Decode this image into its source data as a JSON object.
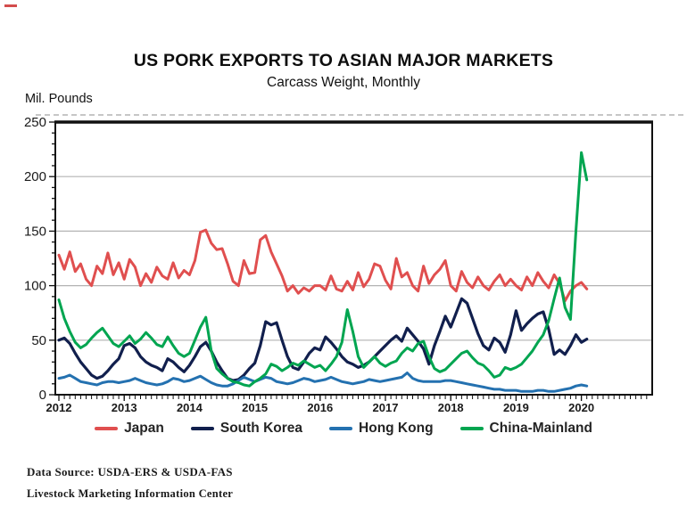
{
  "decorations": {
    "top_left_dash_color": "#d34c4c"
  },
  "footer": {
    "data_source": "Data Source:  USDA-ERS & USDA-FAS",
    "organization": "Livestock Marketing Information Center"
  },
  "chart_data": {
    "type": "line",
    "title": "US PORK EXPORTS TO ASIAN MAJOR MARKETS",
    "subtitle": "Carcass Weight, Monthly",
    "ylabel": "Mil. Pounds",
    "ylim": [
      0,
      250
    ],
    "y_ticks": [
      0,
      50,
      100,
      150,
      200,
      250
    ],
    "x_tick_labels": [
      "2012",
      "2013",
      "2014",
      "2015",
      "2016",
      "2017",
      "2018",
      "2019",
      "2020"
    ],
    "frequency": "monthly",
    "x_start": "2012-01",
    "x_end": "2020-02",
    "points_per_series": 98,
    "grid": "horizontal",
    "legend_position": "bottom",
    "axis_color": "#111111",
    "grid_color": "#b3b3b3",
    "series": [
      {
        "name": "Japan",
        "color": "#e04f4f",
        "values": [
          128,
          115,
          131,
          113,
          120,
          106,
          100,
          118,
          111,
          130,
          110,
          121,
          106,
          124,
          117,
          100,
          111,
          103,
          117,
          109,
          106,
          121,
          107,
          114,
          110,
          123,
          149,
          151,
          139,
          133,
          134,
          120,
          104,
          100,
          123,
          111,
          112,
          142,
          146,
          131,
          120,
          109,
          95,
          100,
          93,
          98,
          95,
          100,
          100,
          96,
          109,
          97,
          95,
          104,
          96,
          112,
          99,
          106,
          120,
          118,
          105,
          97,
          125,
          108,
          112,
          100,
          95,
          118,
          102,
          110,
          115,
          123,
          100,
          95,
          113,
          103,
          98,
          108,
          100,
          96,
          104,
          110,
          100,
          106,
          100,
          96,
          108,
          100,
          112,
          104,
          98,
          110,
          102,
          86,
          95,
          100,
          103,
          97
        ]
      },
      {
        "name": "South Korea",
        "color": "#111f4d",
        "values": [
          50,
          52,
          47,
          38,
          30,
          24,
          18,
          15,
          17,
          22,
          28,
          33,
          45,
          47,
          43,
          35,
          30,
          27,
          25,
          22,
          33,
          30,
          25,
          21,
          27,
          35,
          44,
          48,
          40,
          30,
          22,
          15,
          13,
          14,
          18,
          24,
          29,
          45,
          67,
          64,
          66,
          50,
          35,
          25,
          23,
          30,
          38,
          43,
          41,
          53,
          48,
          42,
          35,
          30,
          28,
          25,
          27,
          30,
          35,
          40,
          45,
          50,
          54,
          49,
          61,
          55,
          49,
          42,
          28,
          45,
          58,
          72,
          62,
          75,
          88,
          84,
          70,
          56,
          45,
          41,
          52,
          48,
          39,
          55,
          77,
          59,
          65,
          70,
          74,
          76,
          60,
          37,
          41,
          37,
          45,
          55,
          48,
          51
        ]
      },
      {
        "name": "Hong Kong",
        "color": "#2471b0",
        "values": [
          15,
          16,
          18,
          15,
          12,
          11,
          10,
          9,
          11,
          12,
          12,
          11,
          12,
          13,
          15,
          13,
          11,
          10,
          9,
          10,
          12,
          15,
          14,
          12,
          13,
          15,
          17,
          14,
          11,
          9,
          8,
          8,
          10,
          13,
          16,
          14,
          12,
          14,
          16,
          15,
          12,
          11,
          10,
          11,
          13,
          15,
          14,
          12,
          13,
          14,
          16,
          14,
          12,
          11,
          10,
          11,
          12,
          14,
          13,
          12,
          13,
          14,
          15,
          16,
          20,
          15,
          13,
          12,
          12,
          12,
          12,
          13,
          13,
          12,
          11,
          10,
          9,
          8,
          7,
          6,
          5,
          5,
          4,
          4,
          4,
          3,
          3,
          3,
          4,
          4,
          3,
          3,
          4,
          5,
          6,
          8,
          9,
          8
        ]
      },
      {
        "name": "China-Mainland",
        "color": "#00a550",
        "values": [
          87,
          70,
          58,
          48,
          43,
          46,
          52,
          57,
          61,
          54,
          47,
          44,
          49,
          54,
          47,
          51,
          57,
          52,
          46,
          44,
          53,
          45,
          38,
          35,
          38,
          50,
          62,
          71,
          40,
          24,
          19,
          15,
          12,
          11,
          9,
          8,
          12,
          15,
          19,
          28,
          26,
          22,
          25,
          29,
          27,
          31,
          28,
          25,
          27,
          22,
          28,
          35,
          48,
          78,
          58,
          35,
          25,
          30,
          35,
          29,
          26,
          29,
          31,
          38,
          43,
          40,
          47,
          49,
          35,
          24,
          21,
          23,
          28,
          33,
          38,
          40,
          34,
          29,
          27,
          22,
          16,
          18,
          25,
          23,
          25,
          28,
          34,
          40,
          48,
          55,
          68,
          88,
          107,
          80,
          69,
          150,
          222,
          197
        ]
      }
    ]
  }
}
